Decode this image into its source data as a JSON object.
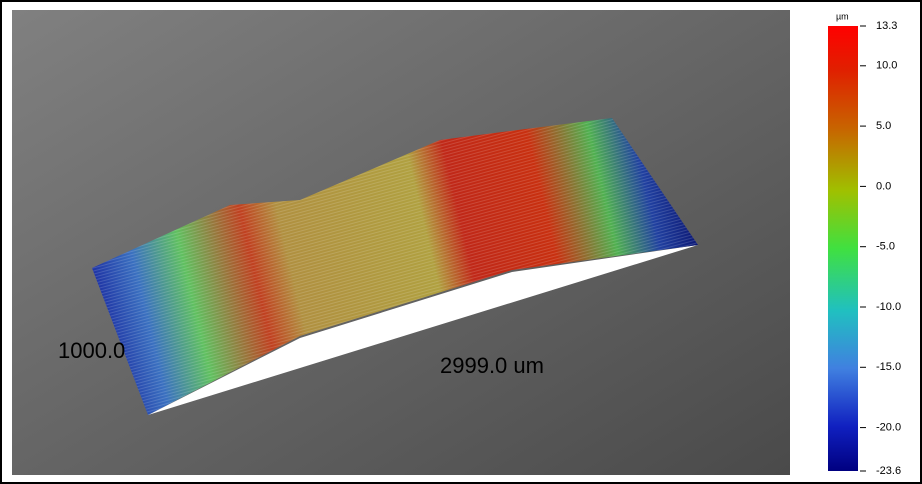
{
  "view": {
    "start_label": "1000.0",
    "end_label": "2999.0 um"
  },
  "colorbar": {
    "unit": "µm",
    "lim": [
      -23.6,
      13.3
    ],
    "ticks": [
      13.3,
      {
        "value": 10,
        "label": "10.0"
      },
      {
        "value": 5,
        "label": "5.0"
      },
      {
        "value": 0,
        "label": "0.0"
      },
      {
        "value": -5,
        "label": "-5.0"
      },
      {
        "value": -10,
        "label": "-10.0"
      },
      {
        "value": -15,
        "label": "-15.0"
      },
      {
        "value": -20,
        "label": "-20.0"
      },
      -23.6
    ]
  }
}
